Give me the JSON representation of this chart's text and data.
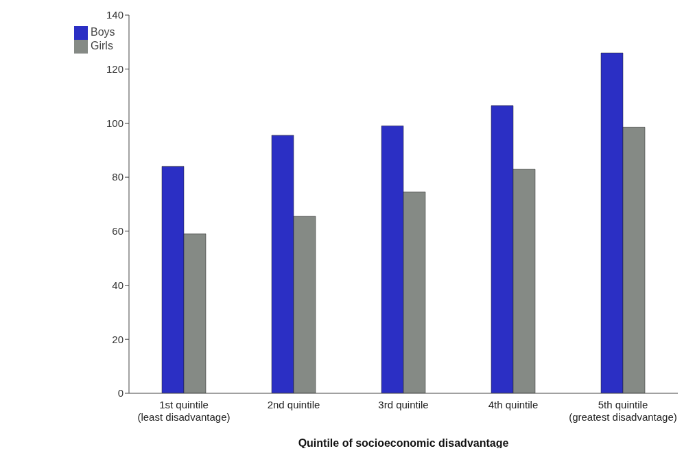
{
  "chart_data": {
    "type": "bar",
    "xlabel": "Quintile of socioeconomic disadvantage",
    "categories": [
      "1st quintile\n(least disadvantage)",
      "2nd quintile",
      "3rd quintile",
      "4th quintile",
      "5th quintile\n(greatest disadvantage)"
    ],
    "series": [
      {
        "name": "Boys",
        "color": "#2b2fc4",
        "values": [
          84,
          95.5,
          99,
          106.5,
          126
        ]
      },
      {
        "name": "Girls",
        "color": "#858a85",
        "values": [
          59,
          65.5,
          74.5,
          83,
          98.5
        ]
      }
    ],
    "ylim": [
      0,
      140
    ],
    "yticks": [
      0,
      20,
      40,
      60,
      80,
      100,
      120,
      140
    ],
    "grid": false,
    "legend": "top left"
  }
}
